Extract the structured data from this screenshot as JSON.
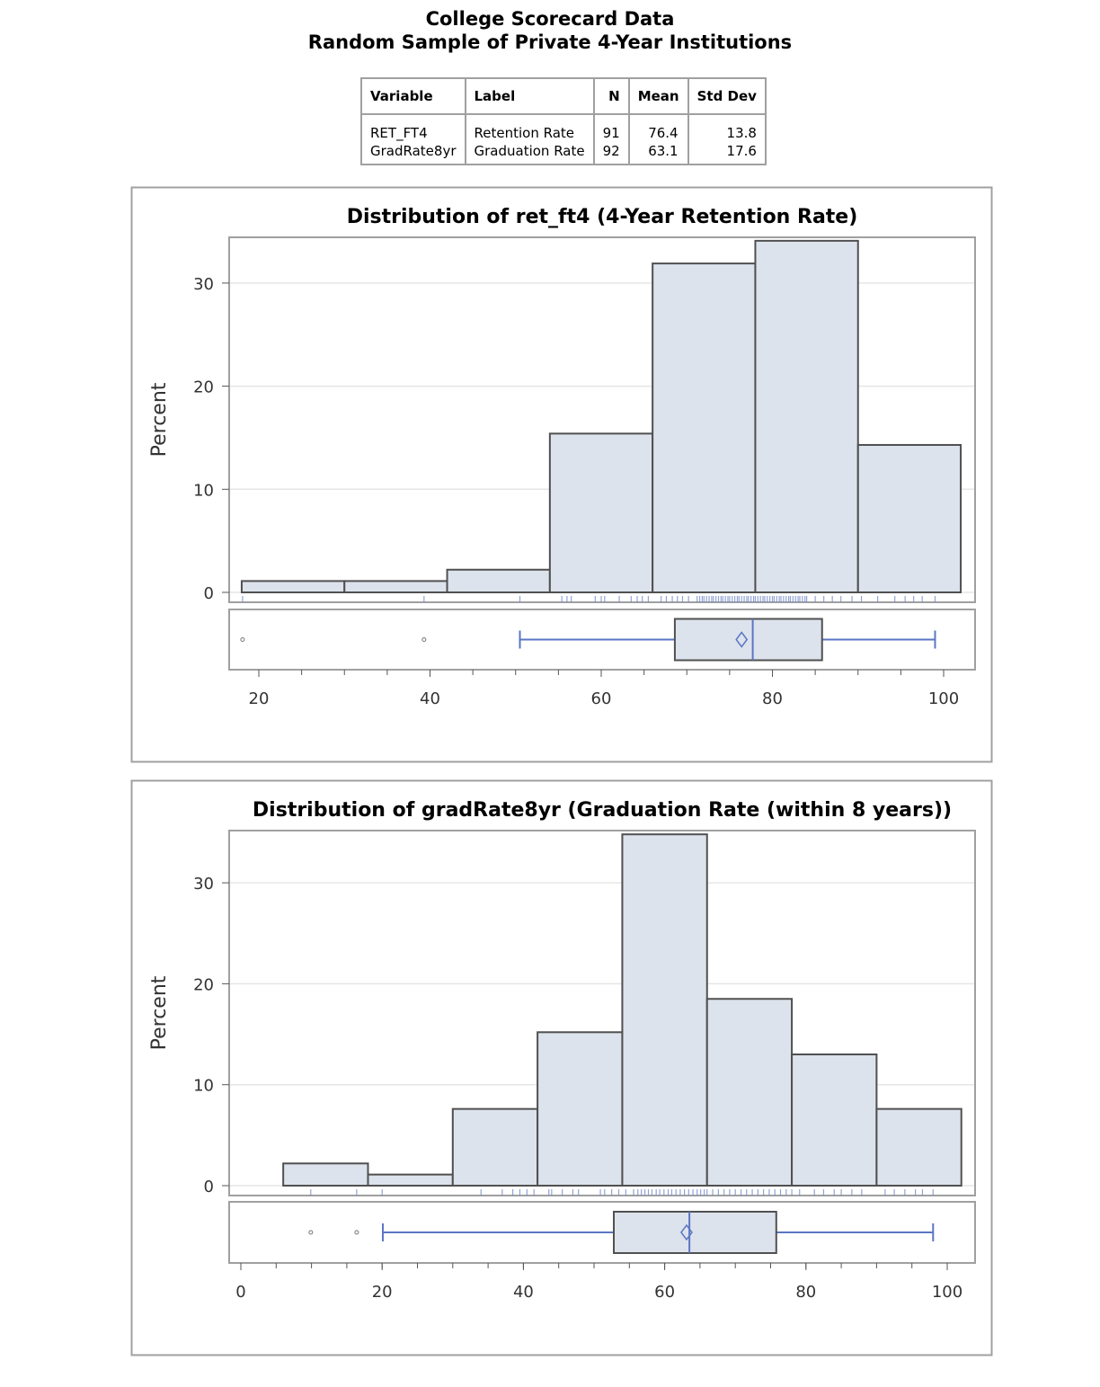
{
  "title": [
    "College Scorecard Data",
    "Random Sample of Private 4-Year Institutions"
  ],
  "summary_table": {
    "headers": [
      "Variable",
      "Label",
      "N",
      "Mean",
      "Std Dev"
    ],
    "rows": [
      {
        "variable": "RET_FT4",
        "label": "Retention Rate",
        "n": "91",
        "mean": "76.4",
        "std": "13.8"
      },
      {
        "variable": "GradRate8yr",
        "label": "Graduation Rate",
        "n": "92",
        "mean": "63.1",
        "std": "17.6"
      }
    ]
  },
  "colors": {
    "bar_fill": "#dde3ec",
    "bar_edge": "#505050",
    "rug": "#6f86c7",
    "box_line": "#5b76c4",
    "grid": "#e6e6e6"
  },
  "chart_data": [
    {
      "type": "histogram+boxplot",
      "title": "Distribution of ret_ft4 (4-Year Retention Rate)",
      "ylabel": "Percent",
      "xlabel": "",
      "ylim": [
        0,
        35
      ],
      "yticks": [
        "0",
        "10",
        "20",
        "30"
      ],
      "xlim": [
        18,
        102
      ],
      "xticks": [
        "20",
        "40",
        "60",
        "80",
        "100"
      ],
      "grid": true,
      "bins": [
        {
          "from": 18,
          "to": 30,
          "percent": 1.1
        },
        {
          "from": 30,
          "to": 42,
          "percent": 1.1
        },
        {
          "from": 42,
          "to": 54,
          "percent": 2.2
        },
        {
          "from": 54,
          "to": 66,
          "percent": 15.4
        },
        {
          "from": 66,
          "to": 78,
          "percent": 31.9
        },
        {
          "from": 78,
          "to": 90,
          "percent": 34.1
        },
        {
          "from": 90,
          "to": 102,
          "percent": 14.3
        }
      ],
      "box": {
        "whisker_low": 50.5,
        "q1": 68.6,
        "median": 77.7,
        "q3": 85.8,
        "whisker_high": 99,
        "mean": 76.4,
        "outliers": [
          18.1,
          39.3
        ]
      },
      "rug": [
        18.1,
        39.3,
        50.5,
        55.4,
        56,
        56.5,
        59.3,
        60,
        60.4,
        62.1,
        63.5,
        64.2,
        64.8,
        65.5,
        67,
        67.6,
        68.3,
        68.9,
        69.5,
        70.2,
        71.2,
        71.5,
        71.8,
        72,
        72.3,
        72.6,
        72.9,
        73.1,
        73.4,
        73.7,
        74,
        74.2,
        74.5,
        74.8,
        75,
        75.3,
        75.6,
        75.9,
        76.1,
        76.4,
        76.7,
        77,
        77.2,
        77.5,
        77.8,
        78,
        78.3,
        78.6,
        78.9,
        79.1,
        79.4,
        79.7,
        80,
        80.2,
        80.5,
        80.8,
        81,
        81.3,
        81.6,
        81.9,
        82.1,
        82.4,
        82.7,
        83,
        83.2,
        83.5,
        83.8,
        84,
        85,
        86,
        87,
        88,
        89.3,
        90.4,
        92.3,
        94.3,
        95.5,
        96.5,
        97.5,
        99
      ]
    },
    {
      "type": "histogram+boxplot",
      "title": "Distribution of gradRate8yr (Graduation Rate (within 8 years))",
      "ylabel": "Percent",
      "xlabel": "",
      "ylim": [
        0,
        35
      ],
      "yticks": [
        "0",
        "10",
        "20",
        "30"
      ],
      "xlim": [
        6,
        102
      ],
      "xticks": [
        "0",
        "20",
        "40",
        "60",
        "80",
        "100"
      ],
      "grid": true,
      "bins": [
        {
          "from": 6,
          "to": 18,
          "percent": 2.2
        },
        {
          "from": 18,
          "to": 30,
          "percent": 1.1
        },
        {
          "from": 30,
          "to": 42,
          "percent": 7.6
        },
        {
          "from": 42,
          "to": 54,
          "percent": 15.2
        },
        {
          "from": 54,
          "to": 66,
          "percent": 34.8
        },
        {
          "from": 66,
          "to": 78,
          "percent": 18.5
        },
        {
          "from": 78,
          "to": 90,
          "percent": 13.0
        },
        {
          "from": 90,
          "to": 102,
          "percent": 7.6
        }
      ],
      "box": {
        "whisker_low": 20.1,
        "q1": 52.8,
        "median": 63.5,
        "q3": 75.8,
        "whisker_high": 98,
        "mean": 63.1,
        "outliers": [
          9.9,
          16.4
        ]
      },
      "rug": [
        9.9,
        16.4,
        20,
        34,
        37,
        38.5,
        39.5,
        40.5,
        41.5,
        43.6,
        44,
        45.5,
        47,
        47.8,
        50.9,
        51.5,
        52.5,
        53.5,
        54.5,
        55.6,
        56.2,
        56.7,
        57.2,
        57.7,
        58.2,
        58.8,
        59.3,
        59.9,
        60.5,
        61,
        61.6,
        62.2,
        62.8,
        63.4,
        64,
        64.6,
        65.1,
        65.6,
        66,
        66.8,
        67.6,
        68.4,
        69.2,
        70,
        70.8,
        71.6,
        72.4,
        73.2,
        74,
        74.8,
        75.6,
        76.4,
        77.2,
        78,
        79.1,
        81.2,
        82.5,
        84,
        85,
        86.5,
        87.9,
        91.2,
        92.5,
        94,
        95.5,
        96.5,
        98
      ]
    }
  ]
}
